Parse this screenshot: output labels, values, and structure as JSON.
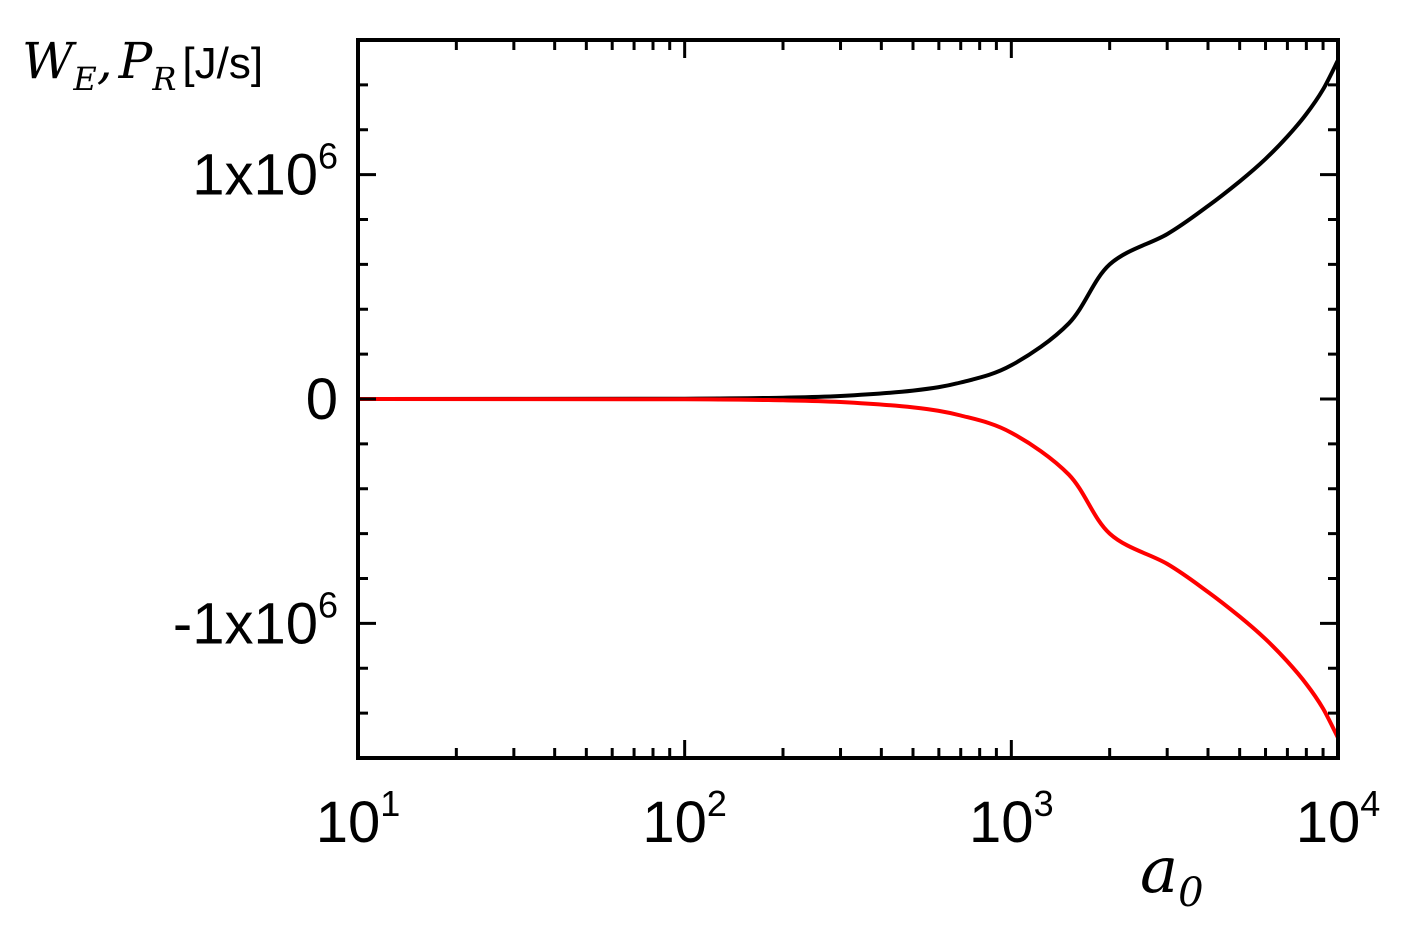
{
  "chart_data": {
    "type": "line",
    "title": "",
    "xlabel": {
      "main": "a",
      "sub": "0"
    },
    "ylabel": {
      "part1_main": "W",
      "part1_sub": "E",
      "sep": ",",
      "part2_main": "P",
      "part2_sub": "R",
      "unit": "[J/s]"
    },
    "xscale": "log",
    "xlim": [
      10,
      10000
    ],
    "ylim": [
      -1600000,
      1600000
    ],
    "x_ticks": [
      {
        "value": 10,
        "base": "10",
        "exp": "1"
      },
      {
        "value": 100,
        "base": "10",
        "exp": "2"
      },
      {
        "value": 1000,
        "base": "10",
        "exp": "3"
      },
      {
        "value": 10000,
        "base": "10",
        "exp": "4"
      }
    ],
    "y_ticks": [
      {
        "value": 1000000,
        "base": "1x10",
        "exp": "6"
      },
      {
        "value": 0,
        "base": "0",
        "exp": ""
      },
      {
        "value": -1000000,
        "base": "-1x10",
        "exp": "6"
      }
    ],
    "y_minor_step": 200000,
    "grid": false,
    "series": [
      {
        "color": "#000000",
        "x": [
          10,
          100,
          200,
          300,
          500,
          700,
          1000,
          1500,
          2000,
          3000,
          4000,
          5000,
          6000,
          7000,
          8000,
          9000,
          10000
        ],
        "y": [
          0,
          1500,
          6000,
          13500,
          37500,
          73500,
          150000,
          337500,
          600000,
          735000,
          860000,
          970000,
          1070000,
          1170000,
          1270000,
          1380000,
          1510000
        ]
      },
      {
        "color": "#ff0000",
        "x": [
          10,
          100,
          200,
          300,
          500,
          700,
          1000,
          1500,
          2000,
          3000,
          4000,
          5000,
          6000,
          7000,
          8000,
          9000,
          10000
        ],
        "y": [
          0,
          -1500,
          -6000,
          -13500,
          -37500,
          -73500,
          -150000,
          -337500,
          -600000,
          -735000,
          -860000,
          -970000,
          -1070000,
          -1170000,
          -1270000,
          -1380000,
          -1510000
        ]
      }
    ]
  }
}
